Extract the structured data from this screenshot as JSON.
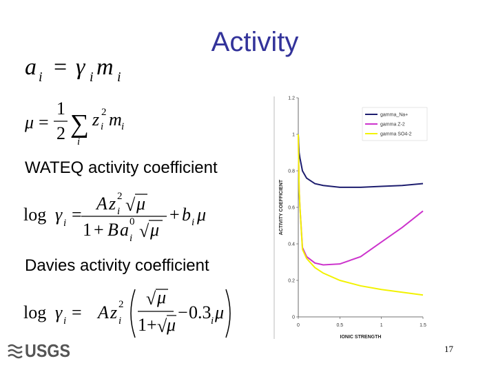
{
  "title": "Activity",
  "equations": [
    [
      "a",
      "i",
      "=",
      "γ",
      "i",
      "m",
      "i"
    ],
    [
      "μ",
      "=",
      "1",
      "2",
      "∑",
      "i",
      "z",
      "i",
      "2",
      "m",
      "i"
    ],
    [
      "log",
      "γ",
      "i",
      "=",
      "A",
      "z",
      "i",
      "2",
      "√",
      "μ",
      "1",
      "+",
      "B",
      "a",
      "i",
      "0",
      "√",
      "μ",
      "+",
      "b",
      "i",
      "μ"
    ],
    [
      "log",
      "γ",
      "i",
      "=",
      "A",
      "z",
      "i",
      "2",
      "√",
      "μ",
      "1",
      "+",
      "√",
      "μ",
      "−",
      "0.3",
      "i",
      "μ"
    ]
  ],
  "labels": [
    "WATEQ activity coefficient",
    "Davies activity coefficient"
  ],
  "logo": "USGS",
  "page_number": "17",
  "chart_data": {
    "type": "line",
    "x_label": "IONIC STRENGTH",
    "y_label": "ACTIVITY COEFFICIENT",
    "x": [
      0,
      0.01,
      0.02,
      0.05,
      0.1,
      0.2,
      0.3,
      0.5,
      0.75,
      1.0,
      1.25,
      1.5
    ],
    "series": [
      {
        "name": "gamma_Na+",
        "color": "#1c1c6e",
        "values": [
          1.0,
          0.9,
          0.87,
          0.8,
          0.76,
          0.73,
          0.72,
          0.71,
          0.71,
          0.715,
          0.72,
          0.73
        ]
      },
      {
        "name": "gamma Z-2",
        "color": "#cc33cc",
        "values": [
          1.0,
          0.7,
          0.6,
          0.38,
          0.33,
          0.295,
          0.285,
          0.29,
          0.33,
          0.41,
          0.49,
          0.58
        ]
      },
      {
        "name": "gamma SO4-2",
        "color": "#f2f200",
        "values": [
          1.0,
          0.7,
          0.6,
          0.37,
          0.32,
          0.27,
          0.24,
          0.2,
          0.17,
          0.15,
          0.135,
          0.12
        ]
      }
    ],
    "xlim": [
      0,
      1.5
    ],
    "xticks": [
      0,
      0.5,
      1,
      1.5
    ],
    "ylim": [
      0,
      1.2
    ],
    "yticks": [
      0,
      0.2,
      0.4,
      0.6,
      0.8,
      1,
      1.2
    ],
    "legend": "upper-right",
    "grid": false
  }
}
